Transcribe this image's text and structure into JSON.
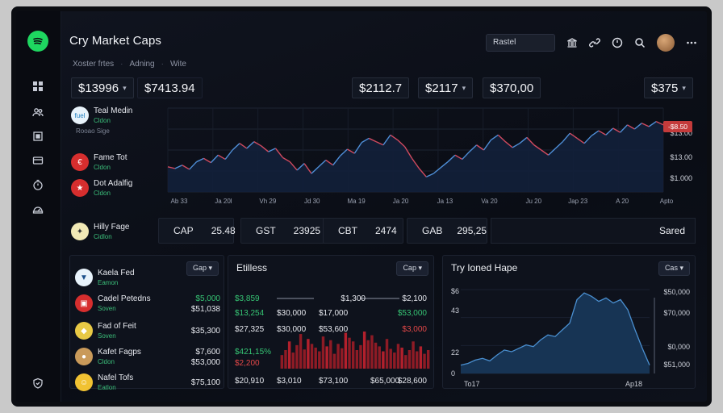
{
  "app": {
    "title": "Cry Market Caps"
  },
  "breadcrumb": [
    "Xoster frtes",
    "Adning",
    "Wite"
  ],
  "search": {
    "value": "Rastel"
  },
  "icons": {
    "logo": "spotify-style-logo-icon",
    "bank": "bank-icon",
    "link": "link-icon",
    "clock": "clock-icon",
    "search": "search-icon",
    "more": "more-icon"
  },
  "rail": [
    "grid-icon",
    "users-icon",
    "box-icon",
    "wallet-icon",
    "timer-icon",
    "gauge-icon",
    "shield-icon"
  ],
  "stats": [
    {
      "value": "$13996",
      "caret": "▾"
    },
    {
      "value": "$7413.94",
      "caret": ""
    },
    {
      "value": "$2112.7",
      "caret": ""
    },
    {
      "value": "$2117",
      "caret": "▾"
    },
    {
      "value": "$370,00",
      "caret": ""
    },
    {
      "value": "$375",
      "caret": "▾"
    }
  ],
  "coins": [
    {
      "name": "Teal Medin",
      "sub": "Cldon",
      "color": "#e8f3fb",
      "glyph": "fuel",
      "accent": "#1f7fbf"
    },
    {
      "name": "",
      "sub": "Rooao Sige",
      "color": "",
      "glyph": "",
      "accent": ""
    },
    {
      "name": "Fame Tot",
      "sub": "Cldon",
      "color": "#d62e2e",
      "glyph": "€",
      "accent": "#fff"
    },
    {
      "name": "Dot Adalfig",
      "sub": "Cldon",
      "color": "#d62e2e",
      "glyph": "★",
      "accent": "#fff"
    },
    {
      "name": "Hilly Fage",
      "sub": "Cidlon",
      "color": "#f1e9b6",
      "glyph": "✦",
      "accent": "#333"
    }
  ],
  "chart_data": {
    "type": "line",
    "x_tick_labels": [
      "Ab 33",
      "Ja 20l",
      "Vh 29",
      "Jd 30",
      "Ma 19",
      "Ja 20",
      "Ja 13",
      "Va 20",
      "Ju 20",
      "Jap 23",
      "A 20",
      "Apto"
    ],
    "y_tick_labels": [
      "$13.00",
      "$13.00",
      "$1.000"
    ],
    "current_badge": "-$8.50",
    "series": [
      {
        "values": [
          120,
          118,
          122,
          117,
          126,
          130,
          125,
          134,
          129,
          140,
          148,
          142,
          150,
          145,
          138,
          142,
          131,
          126,
          116,
          124,
          112,
          120,
          128,
          122,
          133,
          141,
          136,
          149,
          154,
          150,
          146,
          158,
          152,
          144,
          130,
          118,
          108,
          112,
          119,
          126,
          134,
          129,
          138,
          146,
          140,
          152,
          158,
          150,
          143,
          148,
          155,
          146,
          140,
          134,
          142,
          150,
          160,
          154,
          148,
          157,
          163,
          158,
          166,
          161,
          170,
          165,
          172,
          168,
          174,
          170
        ]
      }
    ],
    "ylim": [
      90,
      190
    ]
  },
  "legend": [
    {
      "dot": "#e54848",
      "label": "CAP",
      "value": "25.48"
    },
    {
      "dot": "#33c46c",
      "label": "GST",
      "value": "23925"
    },
    {
      "dot": "#2f8fe0",
      "label": "CBT",
      "value": "2474"
    },
    {
      "dot": "#e54848",
      "label": "GAB",
      "value": "295,25"
    }
  ],
  "saved": "Sared",
  "panel1": {
    "dropdown": "Gap",
    "items": [
      {
        "name": "Kaela Fed",
        "sub": "Eamon",
        "v1": "",
        "v2": "",
        "color": "#e8f3fb",
        "glyph": "▼"
      },
      {
        "name": "Cadel Petedns",
        "sub": "Soven",
        "v1": "$5,000",
        "v2": "$51,038",
        "color": "#d62e2e",
        "glyph": "▣"
      },
      {
        "name": "Fad of Feit",
        "sub": "Soven",
        "v1": "$35,300",
        "v2": "",
        "color": "#e8c945",
        "glyph": "◆"
      },
      {
        "name": "Kafet Fagps",
        "sub": "Cldon",
        "v1": "$7,600",
        "v2": "$53,000",
        "color": "#c99a5a",
        "glyph": "●"
      },
      {
        "name": "Nafel Tofs",
        "sub": "Eatlon",
        "v1": "$75,100",
        "v2": "",
        "color": "#f1c232",
        "glyph": "☺"
      }
    ]
  },
  "panel2": {
    "title": "Etilless",
    "dropdown": "Cap",
    "rows": [
      {
        "cells": [
          "$3,859",
          "",
          "$1,300",
          "$2,100"
        ]
      },
      {
        "cells": [
          "$13,254",
          "$30,000",
          "$17,000",
          "$53,000"
        ]
      },
      {
        "cells": [
          "$27,325",
          "$30,000",
          "$53,600",
          "$3,000"
        ]
      },
      {
        "cells": [
          "$421,15%",
          "",
          "",
          ""
        ]
      },
      {
        "cells": [
          "$2,200",
          "",
          "",
          ""
        ]
      },
      {
        "cells": [
          "$20,910",
          "$3,010",
          "$73,100",
          "$65,000",
          "$28,600"
        ]
      }
    ],
    "bars": [
      22,
      30,
      44,
      26,
      38,
      56,
      31,
      48,
      40,
      34,
      28,
      52,
      36,
      46,
      24,
      40,
      33,
      58,
      50,
      44,
      30,
      38,
      60,
      46,
      54,
      42,
      36,
      28,
      48,
      32,
      26,
      40,
      34,
      22,
      30,
      44,
      28,
      36,
      24,
      30
    ]
  },
  "panel3": {
    "title": "Try Ioned Hape",
    "dropdown": "Cas",
    "y_left": [
      "$6",
      "43",
      "22",
      "0"
    ],
    "y_right": [
      "$50,000",
      "$70,000",
      "$0,000",
      "$51,000"
    ],
    "x_labels": [
      "To17",
      "Ap18"
    ],
    "series": [
      10,
      12,
      16,
      18,
      15,
      22,
      28,
      26,
      30,
      34,
      32,
      40,
      46,
      44,
      52,
      60,
      88,
      96,
      92,
      86,
      90,
      84,
      88,
      76,
      52,
      30,
      10
    ]
  }
}
